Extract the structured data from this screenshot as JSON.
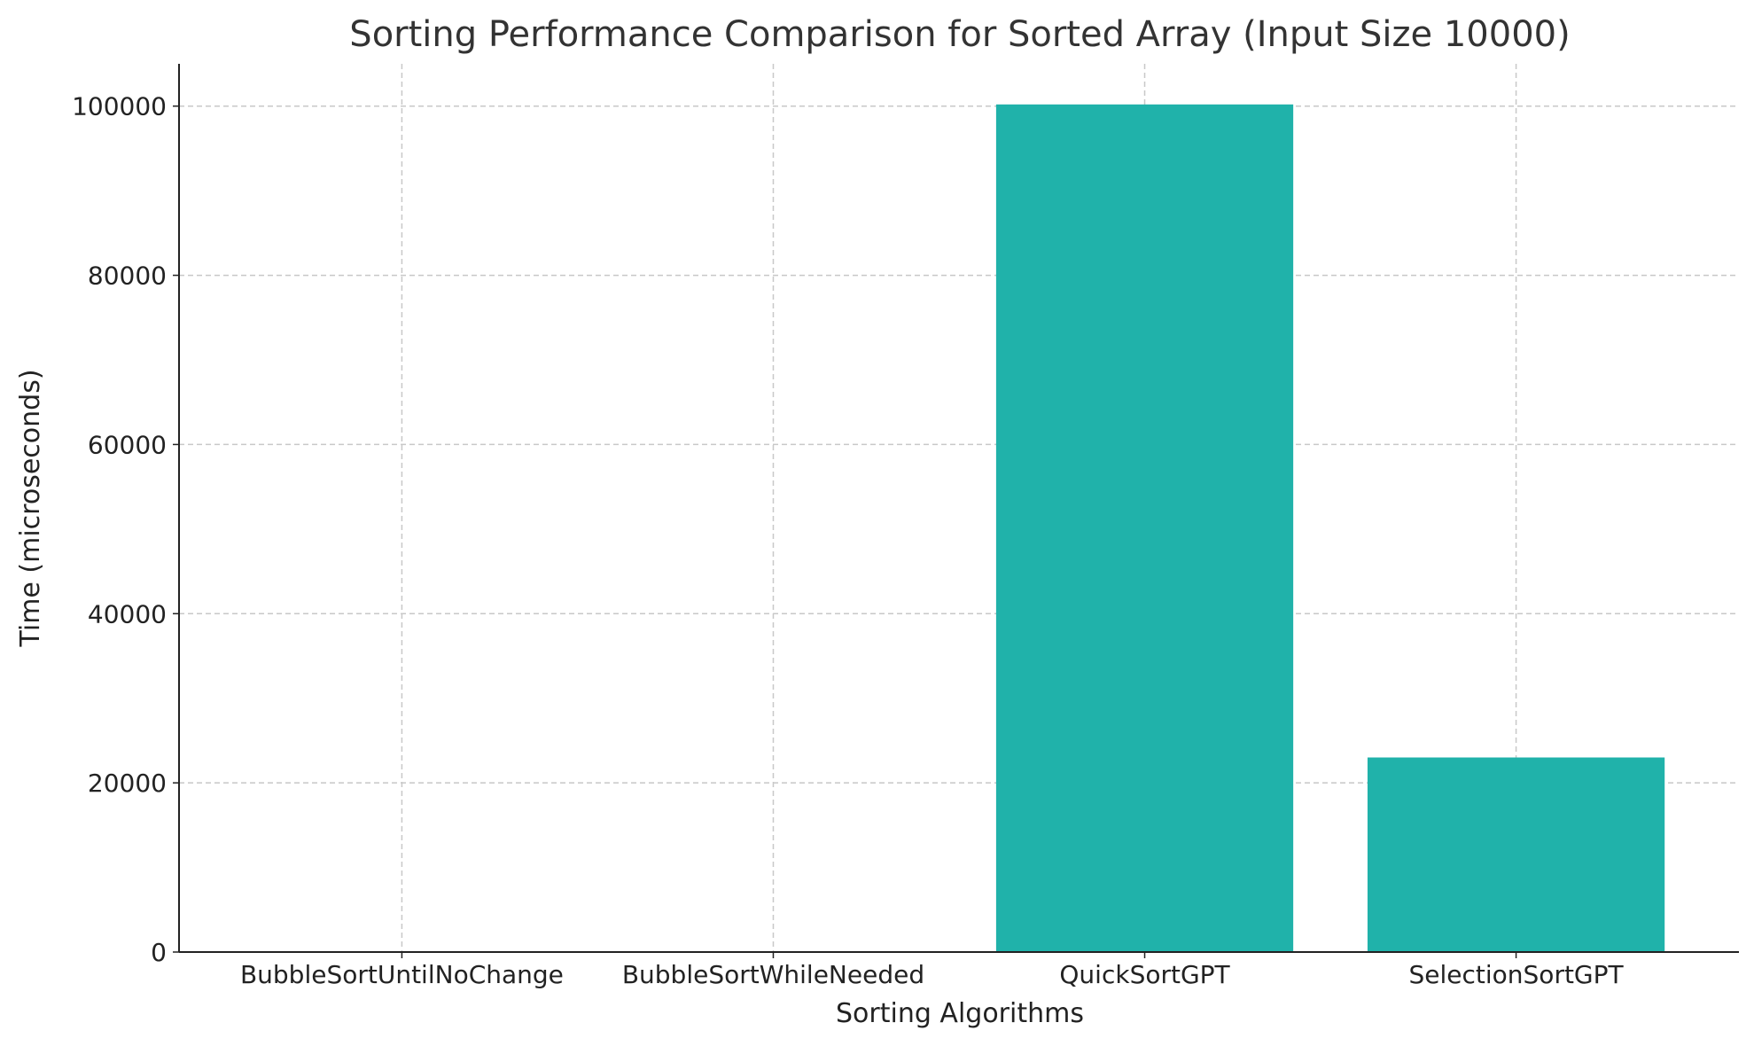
{
  "chart_data": {
    "type": "bar",
    "title": "Sorting Performance Comparison for Sorted Array (Input Size 10000)",
    "xlabel": "Sorting Algorithms",
    "ylabel": "Time (microseconds)",
    "categories": [
      "BubbleSortUntilNoChange",
      "BubbleSortWhileNeeded",
      "QuickSortGPT",
      "SelectionSortGPT"
    ],
    "values": [
      0,
      0,
      100200,
      23000
    ],
    "ylim": [
      0,
      105000
    ],
    "yticks": [
      0,
      20000,
      40000,
      60000,
      80000,
      100000
    ],
    "grid": true,
    "bar_color": "#20b2aa"
  }
}
